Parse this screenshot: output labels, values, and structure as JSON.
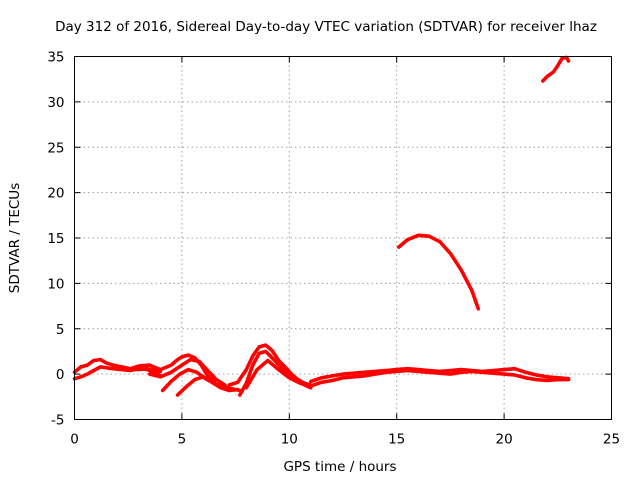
{
  "chart_data": {
    "type": "line",
    "title": "Day 312 of 2016, Sidereal Day-to-day VTEC variation (SDTVAR) for receiver lhaz",
    "xlabel": "GPS time / hours",
    "ylabel": "SDTVAR / TECUs",
    "xlim": [
      0,
      25
    ],
    "ylim": [
      -5,
      35
    ],
    "xticks": [
      0,
      5,
      10,
      15,
      20,
      25
    ],
    "yticks": [
      -5,
      0,
      5,
      10,
      15,
      20,
      25,
      30,
      35
    ],
    "xtick_labels": [
      "0",
      "5",
      "10",
      "15",
      "20",
      "25"
    ],
    "ytick_labels": [
      "-5",
      "0",
      "5",
      "10",
      "15",
      "20",
      "25",
      "30",
      "35"
    ],
    "grid": true,
    "legend": "none",
    "color": "#ff0000",
    "series": [
      {
        "name": "trace-1",
        "x": [
          0,
          0.3,
          0.6,
          0.9,
          1.2,
          1.5,
          1.8,
          2.2,
          2.6,
          3.0,
          3.4,
          3.8,
          4.0
        ],
        "y": [
          0.2,
          0.8,
          1.0,
          1.5,
          1.6,
          1.2,
          1.0,
          0.8,
          0.6,
          0.5,
          0.6,
          0.4,
          0.3
        ]
      },
      {
        "name": "trace-2",
        "x": [
          0,
          0.3,
          0.6,
          0.9,
          1.2,
          1.5,
          1.8,
          2.2,
          2.6,
          3.0,
          3.4,
          3.8,
          4.0
        ],
        "y": [
          -0.5,
          -0.3,
          0.0,
          0.4,
          0.8,
          0.7,
          0.6,
          0.5,
          0.4,
          0.6,
          0.5,
          0.1,
          -0.2
        ]
      },
      {
        "name": "trace-3",
        "x": [
          2.5,
          3.0,
          3.5,
          4.0,
          4.5,
          4.8,
          5.0,
          5.3,
          5.6,
          5.9,
          6.2,
          6.5
        ],
        "y": [
          0.5,
          0.9,
          1.0,
          0.5,
          1.0,
          1.6,
          1.9,
          2.1,
          1.8,
          1.0,
          -0.2,
          -0.8
        ]
      },
      {
        "name": "trace-4",
        "x": [
          3.5,
          4.0,
          4.5,
          5.0,
          5.4,
          5.8,
          6.2,
          6.6,
          7.0
        ],
        "y": [
          0.0,
          -0.3,
          0.2,
          1.0,
          1.6,
          1.4,
          0.4,
          -0.6,
          -1.2
        ]
      },
      {
        "name": "trace-5",
        "x": [
          4.1,
          4.5,
          4.9,
          5.3,
          5.7,
          6.1,
          6.5,
          6.9,
          7.3,
          7.7
        ],
        "y": [
          -1.8,
          -0.8,
          0.0,
          0.5,
          0.2,
          -0.5,
          -1.0,
          -1.4,
          -1.6,
          -1.8
        ]
      },
      {
        "name": "trace-6",
        "x": [
          4.8,
          5.2,
          5.6,
          6.0,
          6.4,
          6.8,
          7.2,
          7.6
        ],
        "y": [
          -2.3,
          -1.4,
          -0.6,
          -0.3,
          -0.9,
          -1.5,
          -1.8,
          -1.7
        ]
      },
      {
        "name": "trace-7",
        "x": [
          7.2,
          7.6,
          8.0,
          8.3,
          8.6,
          8.9,
          9.2,
          9.5,
          9.8,
          10.1,
          10.4,
          10.7,
          11.0
        ],
        "y": [
          -1.2,
          -0.9,
          0.5,
          2.0,
          3.0,
          3.2,
          2.6,
          1.5,
          0.8,
          0.0,
          -0.6,
          -1.0,
          -1.2
        ]
      },
      {
        "name": "trace-8",
        "x": [
          7.7,
          8.0,
          8.3,
          8.6,
          8.9,
          9.2,
          9.6,
          10.0,
          10.4,
          10.8,
          11.0
        ],
        "y": [
          -2.3,
          -1.0,
          1.0,
          2.3,
          2.5,
          1.8,
          0.8,
          0.0,
          -0.8,
          -1.3,
          -1.5
        ]
      },
      {
        "name": "trace-9",
        "x": [
          8.0,
          8.5,
          9.0,
          9.5,
          10.0,
          10.5,
          11.0
        ],
        "y": [
          -1.5,
          0.5,
          1.5,
          0.5,
          -0.4,
          -1.0,
          -1.4
        ]
      },
      {
        "name": "trace-10",
        "x": [
          11.0,
          11.5,
          12.0,
          12.5,
          13.0,
          13.5,
          14.0,
          14.5,
          15.0,
          15.5,
          16.0,
          16.5,
          17.0,
          17.5,
          18.0,
          18.5,
          19.0,
          19.5,
          20.0,
          20.5,
          21.0,
          21.5,
          22.0,
          22.5,
          23.0
        ],
        "y": [
          -1.3,
          -0.9,
          -0.7,
          -0.4,
          -0.3,
          -0.2,
          0.0,
          0.2,
          0.3,
          0.4,
          0.3,
          0.2,
          0.1,
          0.0,
          0.2,
          0.3,
          0.2,
          0.1,
          0.0,
          -0.1,
          -0.4,
          -0.6,
          -0.7,
          -0.6,
          -0.6
        ]
      },
      {
        "name": "trace-11",
        "x": [
          11.0,
          11.5,
          12.0,
          12.5,
          13.0,
          13.5,
          14.0,
          14.5,
          15.0,
          15.5,
          16.0,
          16.5,
          17.0,
          17.5,
          18.0,
          18.5,
          19.0,
          19.5,
          20.0,
          20.5,
          21.0,
          21.5,
          22.0,
          22.5,
          23.0
        ],
        "y": [
          -0.8,
          -0.4,
          -0.2,
          0.0,
          0.1,
          0.2,
          0.3,
          0.4,
          0.5,
          0.6,
          0.5,
          0.4,
          0.3,
          0.4,
          0.5,
          0.4,
          0.3,
          0.4,
          0.5,
          0.6,
          0.2,
          -0.1,
          -0.3,
          -0.4,
          -0.5
        ]
      },
      {
        "name": "trace-12",
        "x": [
          15.1,
          15.5,
          16.0,
          16.5,
          17.0,
          17.5,
          18.0,
          18.5,
          18.8
        ],
        "y": [
          14.0,
          14.8,
          15.3,
          15.2,
          14.6,
          13.3,
          11.5,
          9.2,
          7.2
        ]
      },
      {
        "name": "trace-13",
        "x": [
          21.8,
          22.0,
          22.3,
          22.5,
          22.7,
          22.9,
          23.0
        ],
        "y": [
          32.3,
          32.8,
          33.3,
          34.0,
          34.8,
          34.9,
          34.5
        ]
      }
    ]
  }
}
